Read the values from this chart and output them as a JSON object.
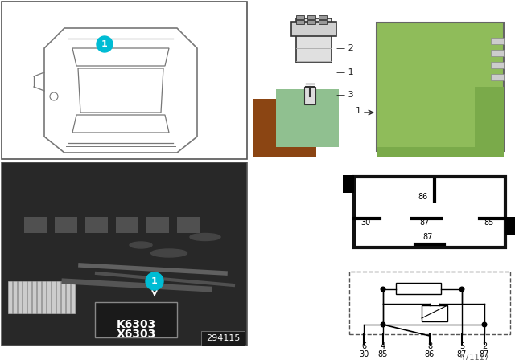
{
  "bg_color": "#ffffff",
  "cyan_circle_color": "#00bcd4",
  "brown_rect_color": "#8B4513",
  "green_rect_color": "#90c090",
  "relay_green_color": "#8fbc5a",
  "label_k6303": "K6303",
  "label_x6303": "X6303",
  "photo_id": "294115",
  "doc_id": "471117"
}
